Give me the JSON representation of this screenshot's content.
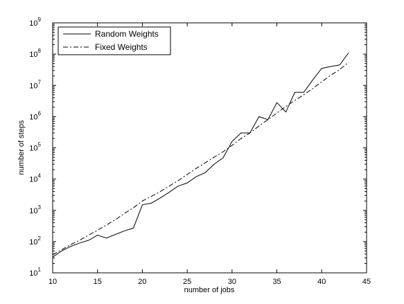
{
  "chart_data": {
    "type": "line",
    "title": "",
    "xlabel": "number of jobs",
    "ylabel": "number of steps",
    "xlim": [
      10,
      45
    ],
    "ylim": [
      10,
      1000000000
    ],
    "yscale": "log",
    "grid": false,
    "legend_position": "top-left",
    "x_ticks": [
      10,
      15,
      20,
      25,
      30,
      35,
      40,
      45
    ],
    "y_ticks": [
      10,
      100,
      1000,
      10000,
      100000,
      1000000,
      10000000,
      100000000,
      1000000000
    ],
    "y_tick_labels": [
      {
        "base": "10",
        "exp": "1"
      },
      {
        "base": "10",
        "exp": "2"
      },
      {
        "base": "10",
        "exp": "3"
      },
      {
        "base": "10",
        "exp": "4"
      },
      {
        "base": "10",
        "exp": "5"
      },
      {
        "base": "10",
        "exp": "6"
      },
      {
        "base": "10",
        "exp": "7"
      },
      {
        "base": "10",
        "exp": "8"
      },
      {
        "base": "10",
        "exp": "9"
      }
    ],
    "x": [
      10,
      11,
      12,
      13,
      14,
      15,
      16,
      17,
      18,
      19,
      20,
      21,
      22,
      23,
      24,
      25,
      26,
      27,
      28,
      29,
      30,
      31,
      32,
      33,
      34,
      35,
      36,
      37,
      38,
      39,
      40,
      41,
      42,
      43
    ],
    "series": [
      {
        "name": "Random Weights",
        "style": "solid",
        "color": "#000000",
        "values": [
          32,
          50,
          70,
          90,
          110,
          160,
          130,
          170,
          220,
          270,
          1500,
          1700,
          2500,
          3800,
          6000,
          7500,
          12000,
          16000,
          30000,
          48000,
          160000,
          300000,
          300000,
          1000000,
          800000,
          2800000,
          1400000,
          6000000,
          6000000,
          15000000,
          35000000,
          40000000,
          45000000,
          110000000
        ]
      },
      {
        "name": "Fixed Weights",
        "style": "dashdot",
        "color": "#000000",
        "values": [
          38,
          55,
          80,
          110,
          160,
          230,
          340,
          500,
          800,
          1200,
          2000,
          2800,
          4000,
          6000,
          9000,
          14000,
          22000,
          33000,
          50000,
          75000,
          120000,
          200000,
          300000,
          500000,
          800000,
          1300000,
          2100000,
          3300000,
          5000000,
          8000000,
          13000000,
          21000000,
          32000000,
          55000000
        ]
      }
    ]
  }
}
